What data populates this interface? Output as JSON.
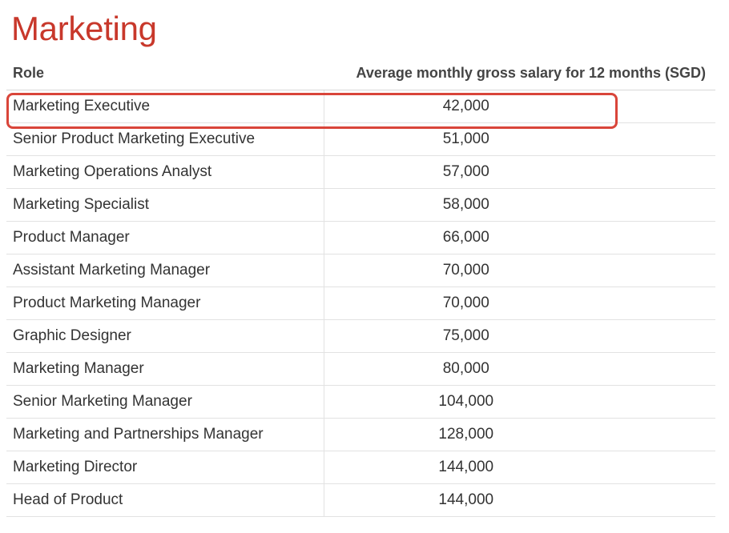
{
  "title": "Marketing",
  "table": {
    "headers": {
      "role": "Role",
      "salary": "Average monthly gross salary for 12 months (SGD)"
    },
    "rows": [
      {
        "role": "Marketing Executive",
        "salary": "42,000"
      },
      {
        "role": "Senior Product Marketing Executive",
        "salary": "51,000"
      },
      {
        "role": "Marketing Operations Analyst",
        "salary": "57,000"
      },
      {
        "role": "Marketing Specialist",
        "salary": "58,000"
      },
      {
        "role": "Product Manager",
        "salary": "66,000"
      },
      {
        "role": "Assistant Marketing Manager",
        "salary": "70,000"
      },
      {
        "role": "Product Marketing Manager",
        "salary": "70,000"
      },
      {
        "role": "Graphic Designer",
        "salary": "75,000"
      },
      {
        "role": "Marketing Manager",
        "salary": "80,000"
      },
      {
        "role": "Senior Marketing Manager",
        "salary": "104,000"
      },
      {
        "role": "Marketing and Partnerships Manager",
        "salary": "128,000"
      },
      {
        "role": "Marketing Director",
        "salary": "144,000"
      },
      {
        "role": "Head of Product",
        "salary": "144,000"
      }
    ],
    "highlighted_row": 0
  },
  "colors": {
    "title": "#c8382b",
    "highlight": "#d9453a"
  }
}
